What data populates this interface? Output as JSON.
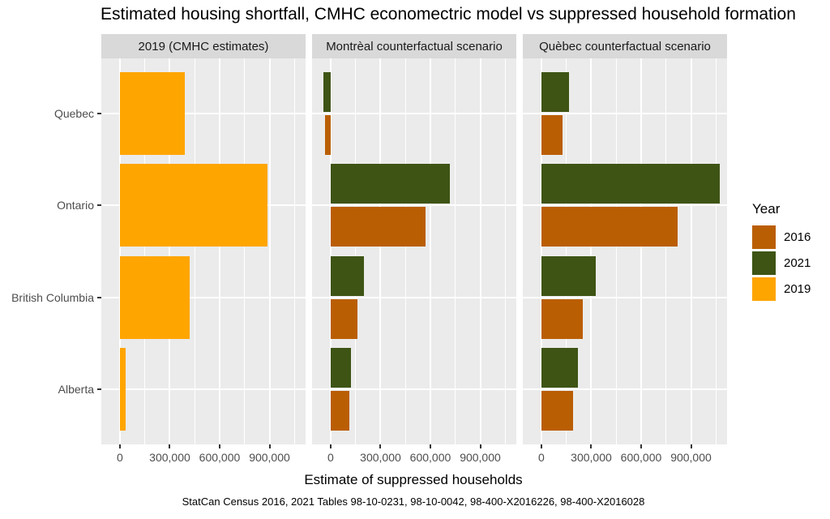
{
  "chart_data": {
    "type": "bar",
    "orientation": "horizontal",
    "title": "Estimated housing shortfall, CMHC economectric model vs suppressed household formation",
    "xlabel": "Estimate of suppressed households",
    "caption": "StatCan Census 2016, 2021 Tables 98-10-0231, 98-10-0042, 98-400-X2016226, 98-400-X2016028",
    "categories": [
      "Quebec",
      "Ontario",
      "British Columbia",
      "Alberta"
    ],
    "xlim": [
      -112000,
      1117000
    ],
    "x_tick_values": [
      0,
      300000,
      600000,
      900000
    ],
    "x_ticks": [
      "0",
      "300,000",
      "600,000",
      "900,000"
    ],
    "x_minor_ticks": [
      150000,
      450000,
      750000,
      1050000
    ],
    "grid": true,
    "panel_background": "#EBEBEB",
    "strip_background": "#D9D9D9",
    "legend": {
      "title": "Year",
      "position": "right",
      "entries": [
        {
          "label": "2016",
          "color": "#BA5E04"
        },
        {
          "label": "2021",
          "color": "#3E5414"
        },
        {
          "label": "2019",
          "color": "#FFA500"
        }
      ]
    },
    "facets": [
      {
        "label": "2019 (CMHC estimates)",
        "series": [
          {
            "name": "2019",
            "values": [
              390000,
              890000,
              420000,
              35000
            ]
          }
        ]
      },
      {
        "label": "Montrèal counterfactual scenario",
        "series": [
          {
            "name": "2016",
            "values": [
              -35000,
              570000,
              160000,
              110000
            ]
          },
          {
            "name": "2021",
            "values": [
              -45000,
              715000,
              200000,
              120000
            ]
          }
        ]
      },
      {
        "label": "Quèbec counterfactual scenario",
        "series": [
          {
            "name": "2016",
            "values": [
              125000,
              820000,
              250000,
              190000
            ]
          },
          {
            "name": "2021",
            "values": [
              165000,
              1075000,
              325000,
              220000
            ]
          }
        ]
      }
    ]
  }
}
